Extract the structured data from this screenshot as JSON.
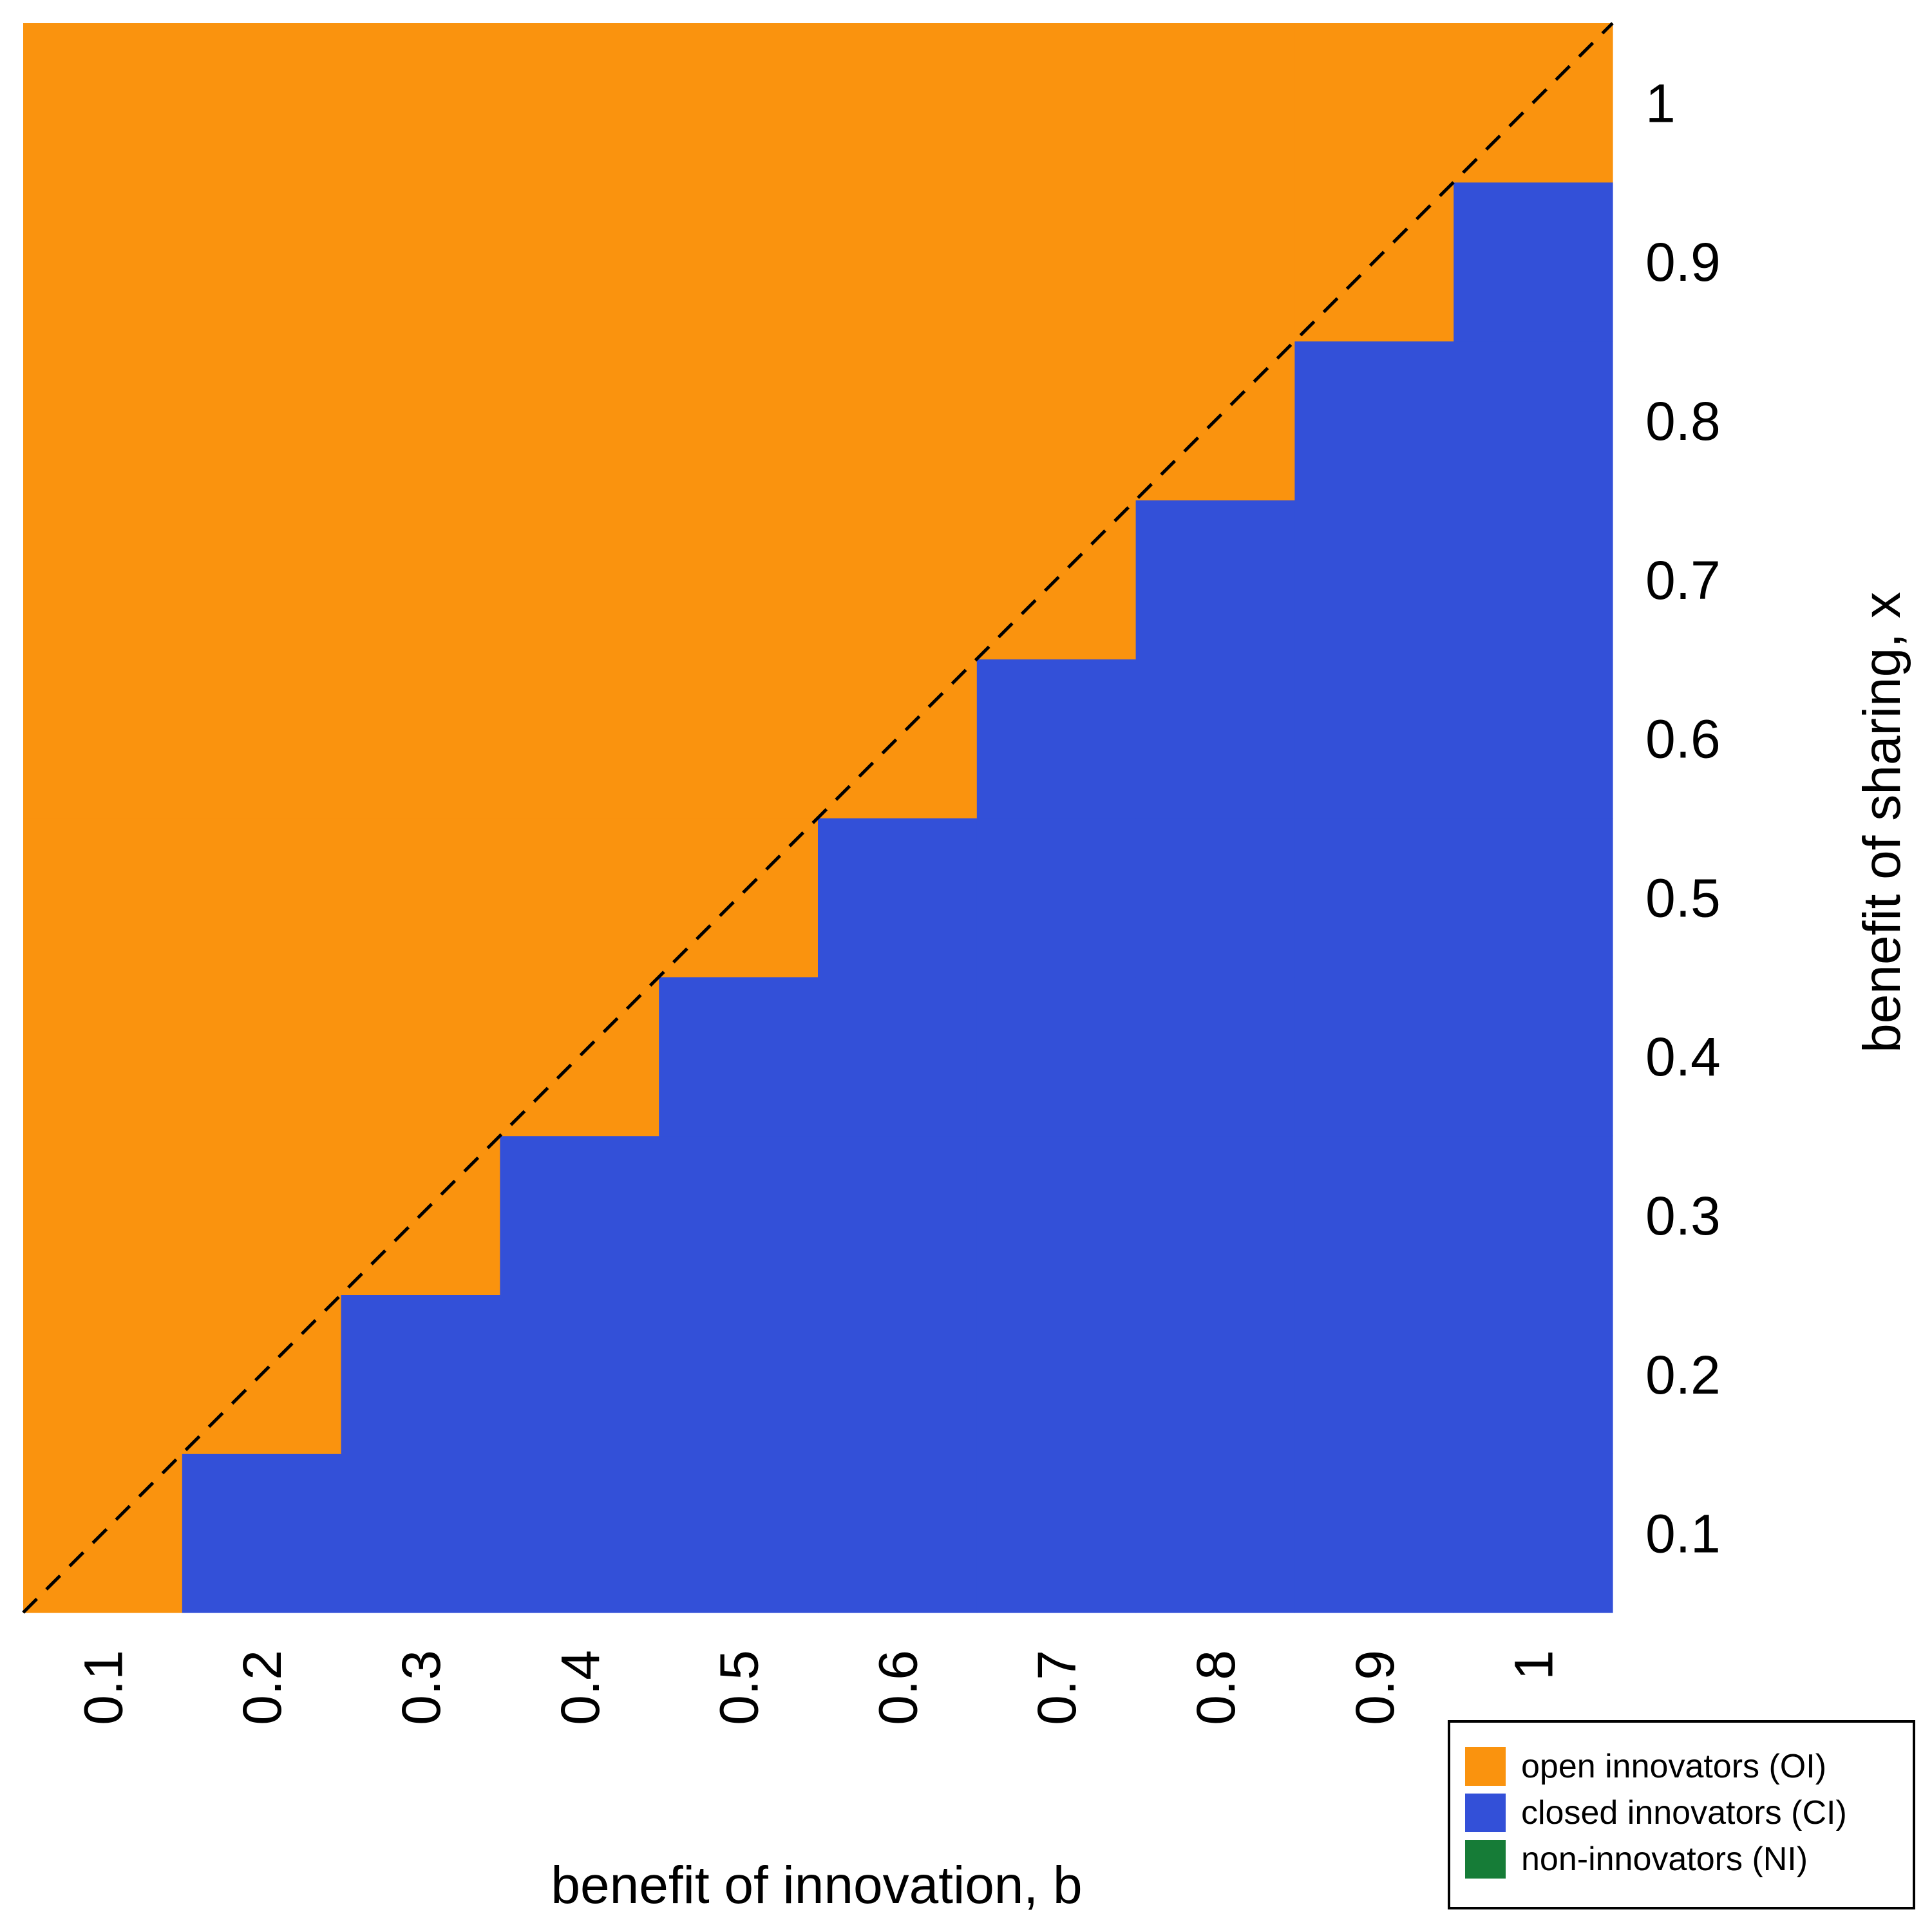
{
  "chart_data": {
    "type": "heatmap",
    "title": "",
    "xlabel": "benefit of innovation, b",
    "ylabel": "benefit of sharing, x",
    "x": [
      0.1,
      0.2,
      0.3,
      0.4,
      0.5,
      0.6,
      0.7,
      0.8,
      0.9,
      1
    ],
    "y": [
      0.1,
      0.2,
      0.3,
      0.4,
      0.5,
      0.6,
      0.7,
      0.8,
      0.9,
      1
    ],
    "x_tick_labels": [
      "0.1",
      "0.2",
      "0.3",
      "0.4",
      "0.5",
      "0.6",
      "0.7",
      "0.8",
      "0.9",
      "1"
    ],
    "y_tick_labels": [
      "0.1",
      "0.2",
      "0.3",
      "0.4",
      "0.5",
      "0.6",
      "0.7",
      "0.8",
      "0.9",
      "1"
    ],
    "rule": "cell is OI when x >= b, otherwise CI",
    "grid": "off",
    "reference_line": {
      "style": "dashed",
      "equation": "x = b",
      "color": "#000000"
    },
    "legend": {
      "placement": "bottom-right",
      "entries": [
        {
          "key": "OI",
          "label": "open innovators (OI)",
          "color": "#FA930E"
        },
        {
          "key": "CI",
          "label": "closed innovators (CI)",
          "color": "#3350D8"
        },
        {
          "key": "NI",
          "label": "non-innovators (NI)",
          "color": "#167C37"
        }
      ]
    }
  }
}
